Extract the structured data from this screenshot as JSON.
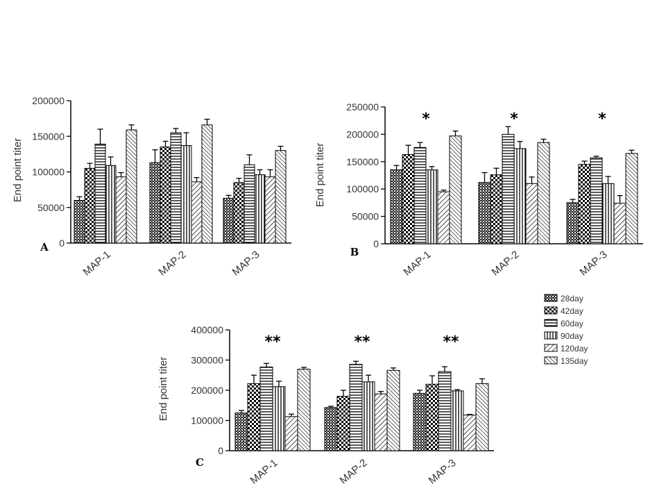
{
  "chart_data": [
    {
      "panel": "A",
      "type": "bar",
      "categories": [
        "MAP-1",
        "MAP-2",
        "MAP-3"
      ],
      "ylabel": "End point titer",
      "ylim": [
        0,
        200000
      ],
      "yticks": [
        0,
        50000,
        100000,
        150000,
        200000
      ],
      "tick_labels": [
        "0",
        "50000",
        "100000",
        "150000",
        "200000"
      ],
      "series": [
        {
          "name": "28day",
          "values": [
            60000,
            113000,
            63000
          ],
          "errors": [
            5000,
            18000,
            4000
          ]
        },
        {
          "name": "42day",
          "values": [
            105000,
            135000,
            85000
          ],
          "errors": [
            7000,
            8000,
            6000
          ]
        },
        {
          "name": "60day",
          "values": [
            139000,
            155000,
            110000
          ],
          "errors": [
            21000,
            6000,
            14000
          ]
        },
        {
          "name": "90day",
          "values": [
            109000,
            137000,
            96000
          ],
          "errors": [
            12000,
            18000,
            7000
          ]
        },
        {
          "name": "120day",
          "values": [
            93000,
            86000,
            93000
          ],
          "errors": [
            6000,
            6000,
            10000
          ]
        },
        {
          "name": "135day",
          "values": [
            159000,
            166000,
            130000
          ],
          "errors": [
            7000,
            8000,
            6000
          ]
        }
      ],
      "significance": [
        "",
        "",
        ""
      ]
    },
    {
      "panel": "B",
      "type": "bar",
      "categories": [
        "MAP-1",
        "MAP-2",
        "MAP-3"
      ],
      "ylabel": "End point titer",
      "ylim": [
        0,
        250000
      ],
      "yticks": [
        0,
        50000,
        100000,
        150000,
        200000,
        250000
      ],
      "tick_labels": [
        "0",
        "50000",
        "100000",
        "150000",
        "200000",
        "250000"
      ],
      "series": [
        {
          "name": "28day",
          "values": [
            135000,
            112000,
            75000
          ],
          "errors": [
            8000,
            18000,
            6000
          ]
        },
        {
          "name": "42day",
          "values": [
            163000,
            126000,
            145000
          ],
          "errors": [
            17000,
            12000,
            6000
          ]
        },
        {
          "name": "60day",
          "values": [
            176000,
            200000,
            157000
          ],
          "errors": [
            9000,
            14000,
            3000
          ]
        },
        {
          "name": "90day",
          "values": [
            135000,
            174000,
            110000
          ],
          "errors": [
            6000,
            13000,
            13000
          ]
        },
        {
          "name": "120day",
          "values": [
            95000,
            110000,
            74000
          ],
          "errors": [
            3000,
            12000,
            14000
          ]
        },
        {
          "name": "135day",
          "values": [
            197000,
            185000,
            165000
          ],
          "errors": [
            9000,
            6000,
            6000
          ]
        }
      ],
      "significance": [
        "*",
        "*",
        "*"
      ]
    },
    {
      "panel": "C",
      "type": "bar",
      "categories": [
        "MAP-1",
        "MAP-2",
        "MAP-3"
      ],
      "ylabel": "End point titer",
      "ylim": [
        0,
        400000
      ],
      "yticks": [
        0,
        100000,
        200000,
        300000,
        400000
      ],
      "tick_labels": [
        "0",
        "100000",
        "200000",
        "300000",
        "400000"
      ],
      "series": [
        {
          "name": "28day",
          "values": [
            125000,
            143000,
            190000
          ],
          "errors": [
            8000,
            4000,
            10000
          ]
        },
        {
          "name": "42day",
          "values": [
            222000,
            180000,
            220000
          ],
          "errors": [
            28000,
            20000,
            28000
          ]
        },
        {
          "name": "60day",
          "values": [
            277000,
            286000,
            262000
          ],
          "errors": [
            12000,
            10000,
            16000
          ]
        },
        {
          "name": "90day",
          "values": [
            212000,
            228000,
            198000
          ],
          "errors": [
            18000,
            22000,
            4000
          ]
        },
        {
          "name": "120day",
          "values": [
            113000,
            188000,
            118000
          ],
          "errors": [
            8000,
            8000,
            2000
          ]
        },
        {
          "name": "135day",
          "values": [
            270000,
            266000,
            222000
          ],
          "errors": [
            6000,
            8000,
            16000
          ]
        }
      ],
      "significance": [
        "**",
        "**",
        "**"
      ]
    }
  ],
  "legend": {
    "entries": [
      "28day",
      "42day",
      "60day",
      "90day",
      "120day",
      "135day"
    ]
  }
}
